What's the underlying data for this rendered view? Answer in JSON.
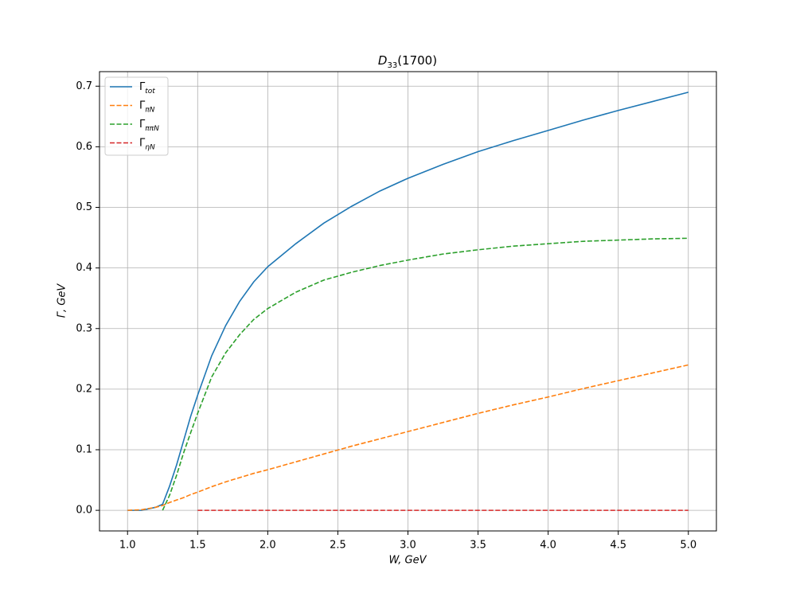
{
  "chart_data": {
    "type": "line",
    "title": "D33(1700)",
    "xlabel": "W, GeV",
    "ylabel": "Γ, GeV",
    "x": [
      1.0,
      1.1,
      1.2,
      1.25,
      1.3,
      1.35,
      1.4,
      1.45,
      1.5,
      1.6,
      1.7,
      1.8,
      1.9,
      2.0,
      2.2,
      2.4,
      2.6,
      2.8,
      3.0,
      3.25,
      3.5,
      3.75,
      4.0,
      4.25,
      4.5,
      4.75,
      5.0
    ],
    "series": [
      {
        "name": "Γtot",
        "color": "#1f77b4",
        "linestyle": "solid",
        "values": [
          0,
          0,
          0.005,
          0.01,
          0.04,
          0.075,
          0.115,
          0.155,
          0.19,
          0.255,
          0.305,
          0.345,
          0.377,
          0.402,
          0.44,
          0.474,
          0.502,
          0.527,
          0.548,
          0.571,
          0.592,
          0.61,
          0.627,
          0.644,
          0.66,
          0.675,
          0.69
        ]
      },
      {
        "name": "ΓπN",
        "color": "#ff7f0e",
        "linestyle": "dashed",
        "values": [
          0,
          0.001,
          0.005,
          0.008,
          0.013,
          0.017,
          0.021,
          0.026,
          0.03,
          0.039,
          0.047,
          0.054,
          0.061,
          0.067,
          0.08,
          0.093,
          0.106,
          0.118,
          0.13,
          0.145,
          0.16,
          0.174,
          0.187,
          0.201,
          0.214,
          0.227,
          0.24
        ]
      },
      {
        "name": "ΓππN",
        "color": "#2ca02c",
        "linestyle": "dashed",
        "values": [
          null,
          null,
          null,
          0,
          0.025,
          0.058,
          0.095,
          0.128,
          0.16,
          0.22,
          0.26,
          0.29,
          0.315,
          0.333,
          0.36,
          0.38,
          0.393,
          0.404,
          0.413,
          0.423,
          0.43,
          0.436,
          0.44,
          0.444,
          0.446,
          0.448,
          0.449
        ]
      },
      {
        "name": "ΓηN",
        "color": "#d62728",
        "linestyle": "dashed",
        "values": [
          null,
          null,
          null,
          null,
          null,
          null,
          null,
          null,
          0,
          0,
          0,
          0,
          0,
          0,
          0,
          0,
          0,
          0,
          0,
          0,
          0,
          0,
          0,
          0,
          0,
          0,
          0
        ]
      }
    ],
    "xlim": [
      0.8,
      5.2
    ],
    "ylim": [
      -0.034,
      0.724
    ],
    "xticks": [
      {
        "value": 1,
        "label": "1.0"
      },
      {
        "value": 1.5,
        "label": "1.5"
      },
      {
        "value": 2,
        "label": "2.0"
      },
      {
        "value": 2.5,
        "label": "2.5"
      },
      {
        "value": 3,
        "label": "3.0"
      },
      {
        "value": 3.5,
        "label": "3.5"
      },
      {
        "value": 4,
        "label": "4.0"
      },
      {
        "value": 4.5,
        "label": "4.5"
      },
      {
        "value": 5,
        "label": "5.0"
      }
    ],
    "yticks": [
      {
        "value": 0,
        "label": "0.0"
      },
      {
        "value": 0.1,
        "label": "0.1"
      },
      {
        "value": 0.2,
        "label": "0.2"
      },
      {
        "value": 0.3,
        "label": "0.3"
      },
      {
        "value": 0.4,
        "label": "0.4"
      },
      {
        "value": 0.5,
        "label": "0.5"
      },
      {
        "value": 0.6,
        "label": "0.6"
      },
      {
        "value": 0.7,
        "label": "0.7"
      }
    ],
    "grid": true,
    "legend": "upper left"
  }
}
